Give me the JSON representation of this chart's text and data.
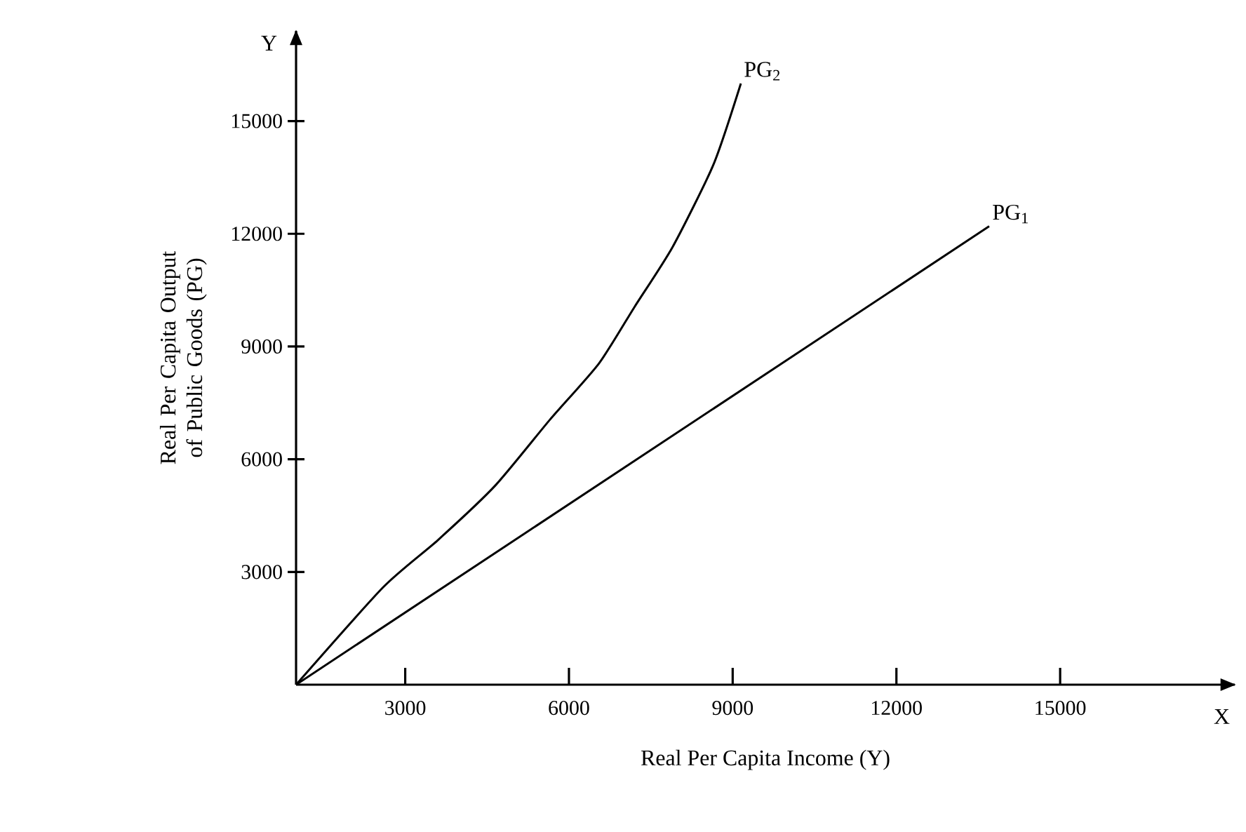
{
  "chart_data": {
    "type": "line",
    "xlabel": "Real Per Capita Income (Y)",
    "ylabel": "Real Per Capita Output of Public Goods (PG)",
    "annotations": [
      "Y",
      "X"
    ],
    "xlim": [
      1000,
      18200
    ],
    "ylim": [
      0,
      17400
    ],
    "xticks": [
      3000,
      6000,
      9000,
      12000,
      15000
    ],
    "yticks": [
      3000,
      6000,
      9000,
      12000,
      15000
    ],
    "grid": false,
    "legend": false,
    "marker": "none",
    "line_style": "solid",
    "series": [
      {
        "name": "PG$_{1}$",
        "color": "#000000",
        "x": [
          1000,
          13700
        ],
        "values": [
          0,
          12200
        ]
      },
      {
        "name": "PG$_{2}$",
        "color": "#000000",
        "x": [
          1000,
          2600,
          3600,
          4650,
          5650,
          6550,
          7200,
          7900,
          8650,
          9150
        ],
        "values": [
          0,
          2600,
          3850,
          5300,
          7050,
          8550,
          10050,
          11650,
          13850,
          16000
        ]
      }
    ]
  }
}
